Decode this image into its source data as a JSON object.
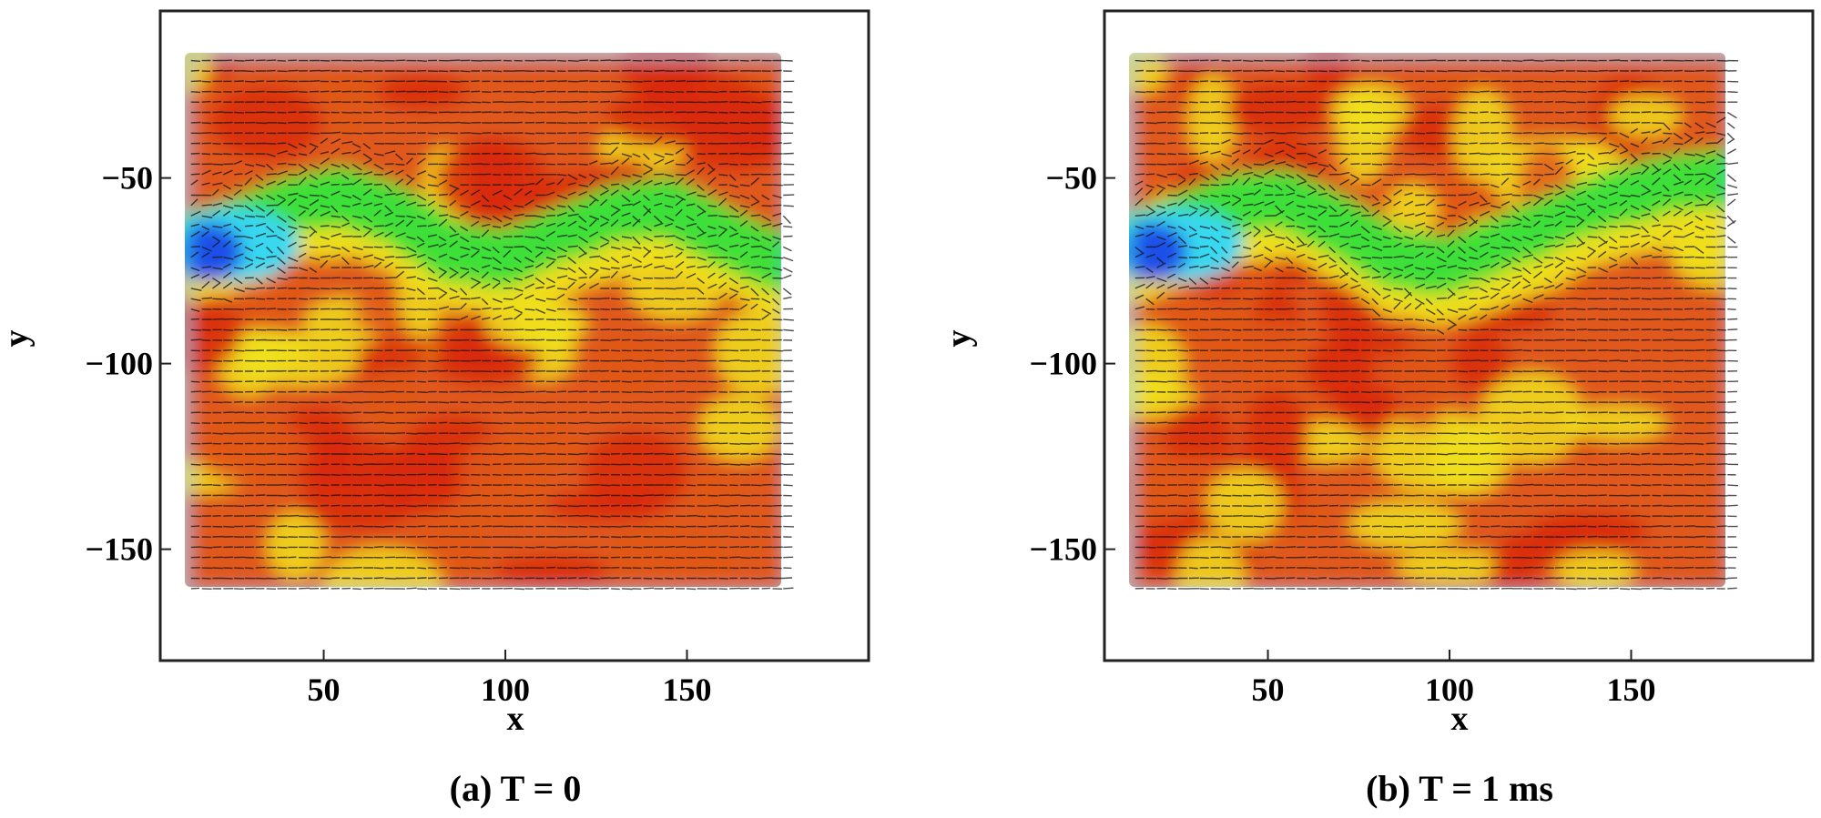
{
  "colors": {
    "red": "#d8290f",
    "orange": "#e0581a",
    "yellow": "#f0e020",
    "green": "#3fe03a",
    "cyan": "#39d8f0",
    "blue": "#1a4fe8",
    "vector": "#111111"
  },
  "chart_data": [
    {
      "type": "contour-vector",
      "caption": "(a) T = 0",
      "xlabel": "x",
      "ylabel": "y",
      "xlim": [
        5,
        200
      ],
      "ylim": [
        -180,
        -5
      ],
      "xticks": [
        {
          "value": 50,
          "label": "50"
        },
        {
          "value": 100,
          "label": "100"
        },
        {
          "value": 150,
          "label": "150"
        }
      ],
      "yticks": [
        {
          "value": -50,
          "label": "−50"
        },
        {
          "value": -100,
          "label": "−100"
        },
        {
          "value": -150,
          "label": "−150"
        }
      ],
      "domain": {
        "x": [
          12,
          178
        ],
        "y": [
          -162,
          -17
        ]
      },
      "jet": {
        "x0": 12,
        "y": -68,
        "half_width": 8
      },
      "wake_y": [
        -68,
        -64,
        -58,
        -55,
        -60,
        -70,
        -72,
        -66,
        -60,
        -58,
        -66,
        -74
      ],
      "wake_x": [
        12,
        25,
        40,
        55,
        70,
        85,
        100,
        115,
        130,
        145,
        160,
        178
      ]
    },
    {
      "type": "contour-vector",
      "caption": "(b) T = 1 ms",
      "xlabel": "x",
      "ylabel": "y",
      "xlim": [
        5,
        200
      ],
      "ylim": [
        -180,
        -5
      ],
      "xticks": [
        {
          "value": 50,
          "label": "50"
        },
        {
          "value": 100,
          "label": "100"
        },
        {
          "value": 150,
          "label": "150"
        }
      ],
      "yticks": [
        {
          "value": -50,
          "label": "−50"
        },
        {
          "value": -100,
          "label": "−100"
        },
        {
          "value": -150,
          "label": "−150"
        }
      ],
      "domain": {
        "x": [
          12,
          178
        ],
        "y": [
          -162,
          -17
        ]
      },
      "jet": {
        "x0": 12,
        "y": -68,
        "half_width": 8
      },
      "wake_y": [
        -68,
        -63,
        -57,
        -56,
        -63,
        -72,
        -74,
        -68,
        -62,
        -56,
        -52,
        -50
      ],
      "wake_x": [
        12,
        25,
        40,
        55,
        70,
        85,
        100,
        115,
        130,
        145,
        160,
        178
      ]
    }
  ]
}
